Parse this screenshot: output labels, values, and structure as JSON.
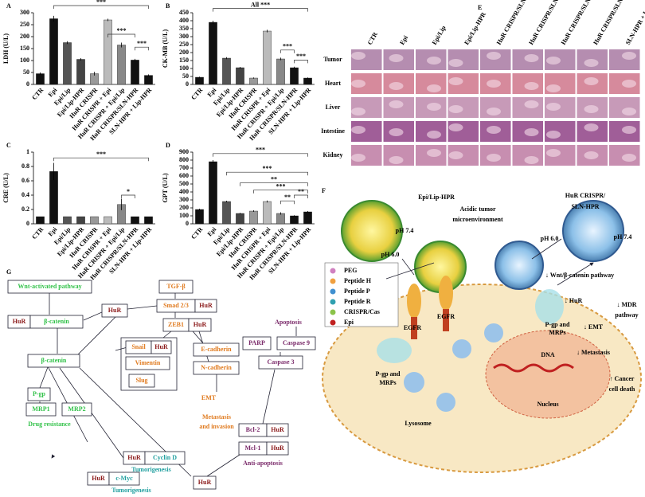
{
  "chart_data": [
    {
      "type": "bar",
      "panel": "A",
      "y_label": "LDH (U/L)",
      "categories": [
        "CTR",
        "Epi",
        "Epi/Lip",
        "Epi/Lip-HPR",
        "HuR CRISPR",
        "HuR CRISPR + Epi",
        "HuR CRISPR + Epi/Lip",
        "HuR CRISPR/SLN-HPR",
        "SLN-HPR + Lip-HPR"
      ],
      "values": [
        45,
        275,
        175,
        105,
        45,
        270,
        165,
        102,
        38
      ],
      "errors": [
        5,
        12,
        6,
        5,
        8,
        5,
        10,
        5,
        4
      ],
      "colors": [
        "#111",
        "#111",
        "#555",
        "#444",
        "#999",
        "#bbb",
        "#888",
        "#111",
        "#111"
      ],
      "ylim": [
        0,
        300
      ],
      "yticks": [
        0,
        50,
        100,
        150,
        200,
        250,
        300
      ],
      "annotations": [
        "***",
        "***",
        "***"
      ]
    },
    {
      "type": "bar",
      "panel": "B",
      "y_label": "CK-MB (U/L)",
      "categories": [
        "CTR",
        "Epi",
        "Epi/Lip",
        "Epi/Lip-HPR",
        "HuR CRISPR",
        "HuR CRISPR + Epi",
        "HuR CRISPR + Epi/Lip",
        "HuR CRISPR/SLN-HPR",
        "SLN-HPR + Lip-HPR"
      ],
      "values": [
        45,
        390,
        165,
        105,
        40,
        335,
        160,
        105,
        40
      ],
      "errors": [
        4,
        10,
        6,
        5,
        4,
        8,
        8,
        6,
        4
      ],
      "colors": [
        "#111",
        "#111",
        "#555",
        "#444",
        "#999",
        "#bbb",
        "#888",
        "#111",
        "#111"
      ],
      "ylim": [
        0,
        450
      ],
      "yticks": [
        0,
        50,
        100,
        150,
        200,
        250,
        300,
        350,
        400,
        450
      ],
      "annotations": [
        "All ***",
        "***",
        "***"
      ]
    },
    {
      "type": "bar",
      "panel": "C",
      "y_label": "CRE (U/L)",
      "categories": [
        "CTR",
        "Epi",
        "Epi/Lip",
        "Epi/Lip-HPR",
        "HuR CRISPR",
        "HuR CRISPR + Epi",
        "HuR CRISPR + Epi/Lip",
        "HuR CRISPR/SLN-HPR",
        "SLN-HPR + Lip-HPR"
      ],
      "values": [
        0.1,
        0.73,
        0.1,
        0.1,
        0.1,
        0.1,
        0.27,
        0.1,
        0.1
      ],
      "errors": [
        0,
        0.12,
        0,
        0,
        0,
        0,
        0.08,
        0,
        0
      ],
      "colors": [
        "#111",
        "#111",
        "#555",
        "#444",
        "#999",
        "#bbb",
        "#888",
        "#111",
        "#111"
      ],
      "ylim": [
        0,
        1
      ],
      "yticks": [
        0,
        0.2,
        0.4,
        0.6,
        0.8,
        1
      ],
      "annotations": [
        "***",
        "*"
      ]
    },
    {
      "type": "bar",
      "panel": "D",
      "y_label": "GPT (U/L)",
      "categories": [
        "CTR",
        "Epi",
        "Epi/Lip",
        "Epi/Lip-HPR",
        "HuR CRISPR",
        "HuR CRISPR + Epi",
        "HuR CRISPR + Epi/Lip",
        "HuR CRISPR/SLN-HPR",
        "SLN-HPR + Lip-HPR"
      ],
      "values": [
        180,
        780,
        280,
        130,
        160,
        280,
        130,
        100,
        150
      ],
      "errors": [
        10,
        20,
        10,
        8,
        10,
        12,
        15,
        8,
        10
      ],
      "colors": [
        "#111",
        "#111",
        "#555",
        "#444",
        "#999",
        "#bbb",
        "#888",
        "#111",
        "#111"
      ],
      "ylim": [
        0,
        900
      ],
      "yticks": [
        0,
        100,
        200,
        300,
        400,
        500,
        600,
        700,
        800,
        900
      ],
      "annotations": [
        "***",
        "***",
        "**",
        "***",
        "**",
        "**"
      ]
    }
  ],
  "panel_e": {
    "panel": "E",
    "columns": [
      "CTR",
      "Epi",
      "Epi/Lip",
      "Epi/Lip-HPR",
      "HuR CRISPR/SLN-HPR",
      "HuR CRISPR/SLN-HPR + Epi",
      "HuR CRISPR/SLN-HPR + Epi/Lip",
      "HuR CRISPR/SLN-HPR + Epi/Lip-HPR",
      "SLN-HPR + Lip-HPR"
    ],
    "rows": [
      "Tumor",
      "Heart",
      "Liver",
      "Intestine",
      "Kidney"
    ]
  },
  "panel_f": {
    "panel": "F",
    "labels": [
      "Epi/Lip-HPR",
      "HuR CRISPR/",
      "SLN-HPR",
      "pH 7.4",
      "pH 6.0",
      "Acidic tumor",
      "microenvironment",
      "pH 7.4",
      "pH 6.0",
      "EGFR",
      "EGFR",
      "P-gp and",
      "MRPs",
      "P-gp and",
      "MRPs",
      "Lysosome",
      "DNA",
      "Nucleus",
      "↓ Wnt/β-catenin  pathway",
      "↓ HuR",
      "↓ MDR",
      "pathway",
      "↓ EMT",
      "↓ Metastasis",
      "↑ Cancer",
      "cell death"
    ],
    "legend": [
      "PEG",
      "Peptide H",
      "Peptide P",
      "Peptide R",
      "CRISPR/Cas",
      "Epi"
    ]
  },
  "panel_g": {
    "panel": "G",
    "nodes": [
      "Wnt-activated pathway",
      "HuR",
      "β-catenin",
      "HuR",
      "TGF-β",
      "Smad 2/3",
      "HuR",
      "ZEB1",
      "HuR",
      "Snail",
      "HuR",
      "Vimentin",
      "Slug",
      "E-cadherin",
      "N-cadherin",
      "EMT",
      "Metastasis",
      "and invasion",
      "Apoptosis",
      "PARP",
      "Caspase 9",
      "Caspase 3",
      "Bcl-2",
      "HuR",
      "Mcl-1",
      "HuR",
      "Anti-apoptosis",
      "β-catenin",
      "P-gp",
      "MRP1",
      "MRP2",
      "Drug resistance",
      "HuR",
      "Cyclin D",
      "Tumorigenesis",
      "HuR",
      "c-Myc",
      "Tumorigenesis",
      "HuR"
    ]
  }
}
